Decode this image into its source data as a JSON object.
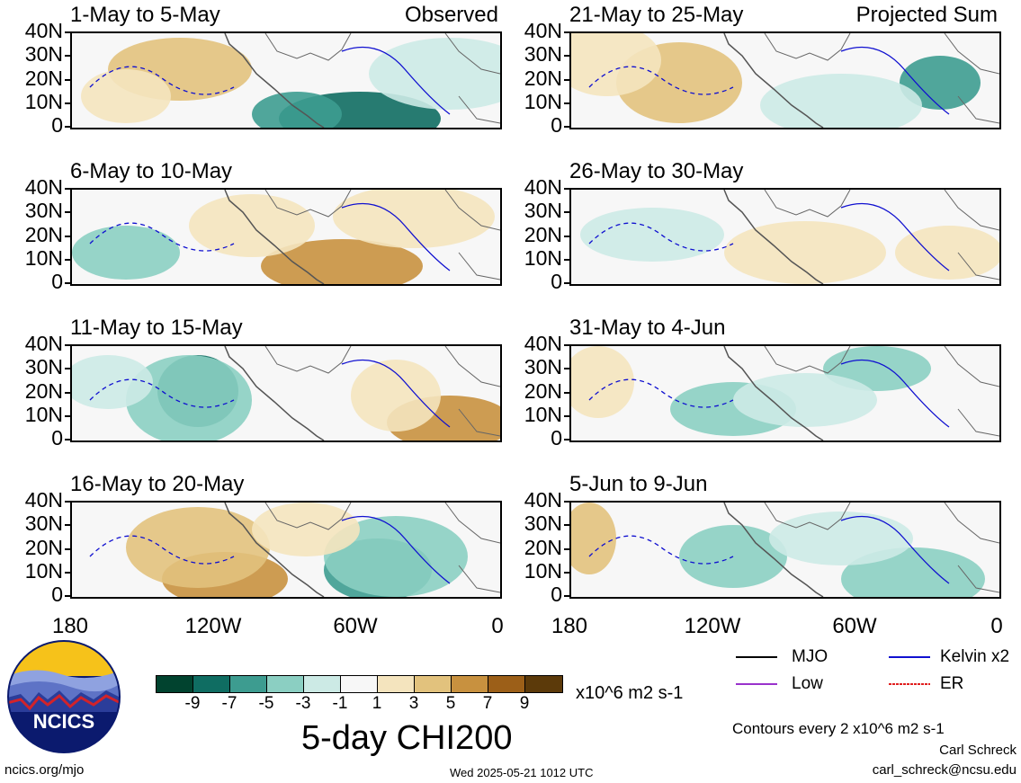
{
  "panels": [
    {
      "title": "1-May to 5-May",
      "tag": "Observed"
    },
    {
      "title": "21-May to 25-May",
      "tag": "Projected Sum"
    },
    {
      "title": "6-May to 10-May",
      "tag": ""
    },
    {
      "title": "26-May to 30-May",
      "tag": ""
    },
    {
      "title": "11-May to 15-May",
      "tag": ""
    },
    {
      "title": "31-May to 4-Jun",
      "tag": ""
    },
    {
      "title": "16-May to 20-May",
      "tag": ""
    },
    {
      "title": "5-Jun to 9-Jun",
      "tag": ""
    }
  ],
  "lat_labels": [
    "40N",
    "30N",
    "20N",
    "10N",
    "0"
  ],
  "lon_labels": [
    "180",
    "120W",
    "60W",
    "0"
  ],
  "colorbar": {
    "colors": [
      "#01432f",
      "#0f6d62",
      "#3d9c90",
      "#8bcfc2",
      "#cceae5",
      "#f7f7f7",
      "#f4e4be",
      "#e2c27d",
      "#c8913f",
      "#9c5f18",
      "#5c3a0a"
    ],
    "tick_labels": [
      "-9",
      "-7",
      "-5",
      "-3",
      "-1",
      "1",
      "3",
      "5",
      "7",
      "9"
    ]
  },
  "units": "x10^6 m2 s-1",
  "main_title": "5-day CHI200",
  "legend": [
    {
      "label": "MJO",
      "color": "#000000"
    },
    {
      "label": "Kelvin x2",
      "color": "#1010d0"
    },
    {
      "label": "Low",
      "color": "#9932cc"
    },
    {
      "label": "ER",
      "color": "#e02020"
    }
  ],
  "contour_note": "Contours every 2 x10^6 m2 s-1",
  "author": "Carl Schreck",
  "email": "carl_schreck@ncsu.edu",
  "site": "ncics.org/mjo",
  "timestamp": "Wed 2025-05-21 1012 UTC",
  "logo_text": "NCICS"
}
